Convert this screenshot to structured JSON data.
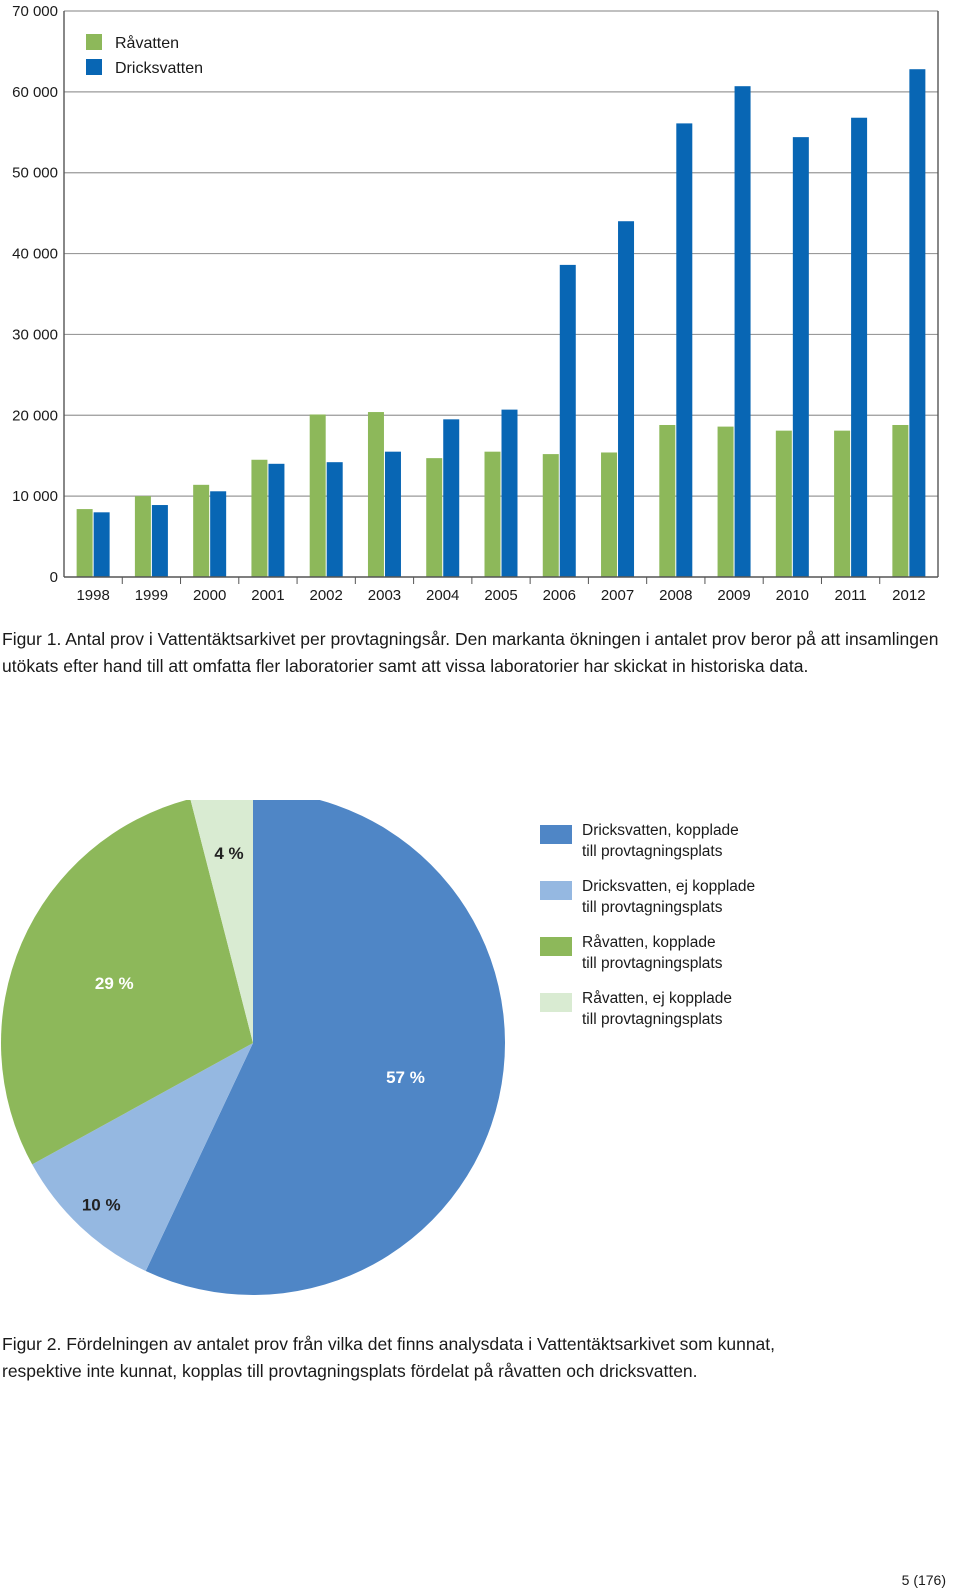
{
  "chart_data": [
    {
      "type": "bar",
      "categories": [
        "1998",
        "1999",
        "2000",
        "2001",
        "2002",
        "2003",
        "2004",
        "2005",
        "2006",
        "2007",
        "2008",
        "2009",
        "2010",
        "2011",
        "2012"
      ],
      "series": [
        {
          "name": "Råvatten",
          "color": "#8db85a",
          "values": [
            8400,
            10000,
            11400,
            14500,
            20100,
            20400,
            14700,
            15500,
            15200,
            15400,
            18800,
            18600,
            18100,
            18100,
            18800
          ]
        },
        {
          "name": "Dricksvatten",
          "color": "#0866b4",
          "values": [
            8000,
            8900,
            10600,
            14000,
            14200,
            15500,
            19500,
            20700,
            38600,
            44000,
            56100,
            60700,
            54400,
            56800,
            62800
          ]
        }
      ],
      "ylim": [
        0,
        70000
      ],
      "yticks": [
        "0",
        "10 000",
        "20 000",
        "30 000",
        "40 000",
        "50 000",
        "60 000",
        "70 000"
      ],
      "ytick_values": [
        0,
        10000,
        20000,
        30000,
        40000,
        50000,
        60000,
        70000
      ],
      "grid": true,
      "legend": "top-left"
    },
    {
      "type": "pie",
      "slices": [
        {
          "label": "Dricksvatten, kopplade\ntill provtagningsplats",
          "value": 57,
          "display": "57 %",
          "color": "#4f86c6"
        },
        {
          "label": "Dricksvatten, ej kopplade\ntill provtagningsplats",
          "value": 10,
          "display": "10 %",
          "color": "#95b8e1"
        },
        {
          "label": "Råvatten, kopplade\ntill provtagningsplats",
          "value": 29,
          "display": "29 %",
          "color": "#8db85a"
        },
        {
          "label": "Råvatten, ej kopplade\ntill provtagningsplats",
          "value": 4,
          "display": "4 %",
          "color": "#d9ebd2"
        }
      ],
      "legend": "right"
    }
  ],
  "captions": {
    "fig1": "Figur 1. Antal prov i Vattentäktsarkivet per provtagningsår. Den markanta ökningen i antalet prov beror på att insamlingen utökats efter hand till att omfatta fler laboratorier samt att vissa laboratorier har skickat in historiska data.",
    "fig2": "Figur 2. Fördelningen av antalet prov från vilka det finns analysdata i Vattentäktsarkivet som kunnat, respektive inte kunnat, kopplas till provtagningsplats fördelat på råvatten och dricksvatten."
  },
  "page_number": "5 (176)"
}
